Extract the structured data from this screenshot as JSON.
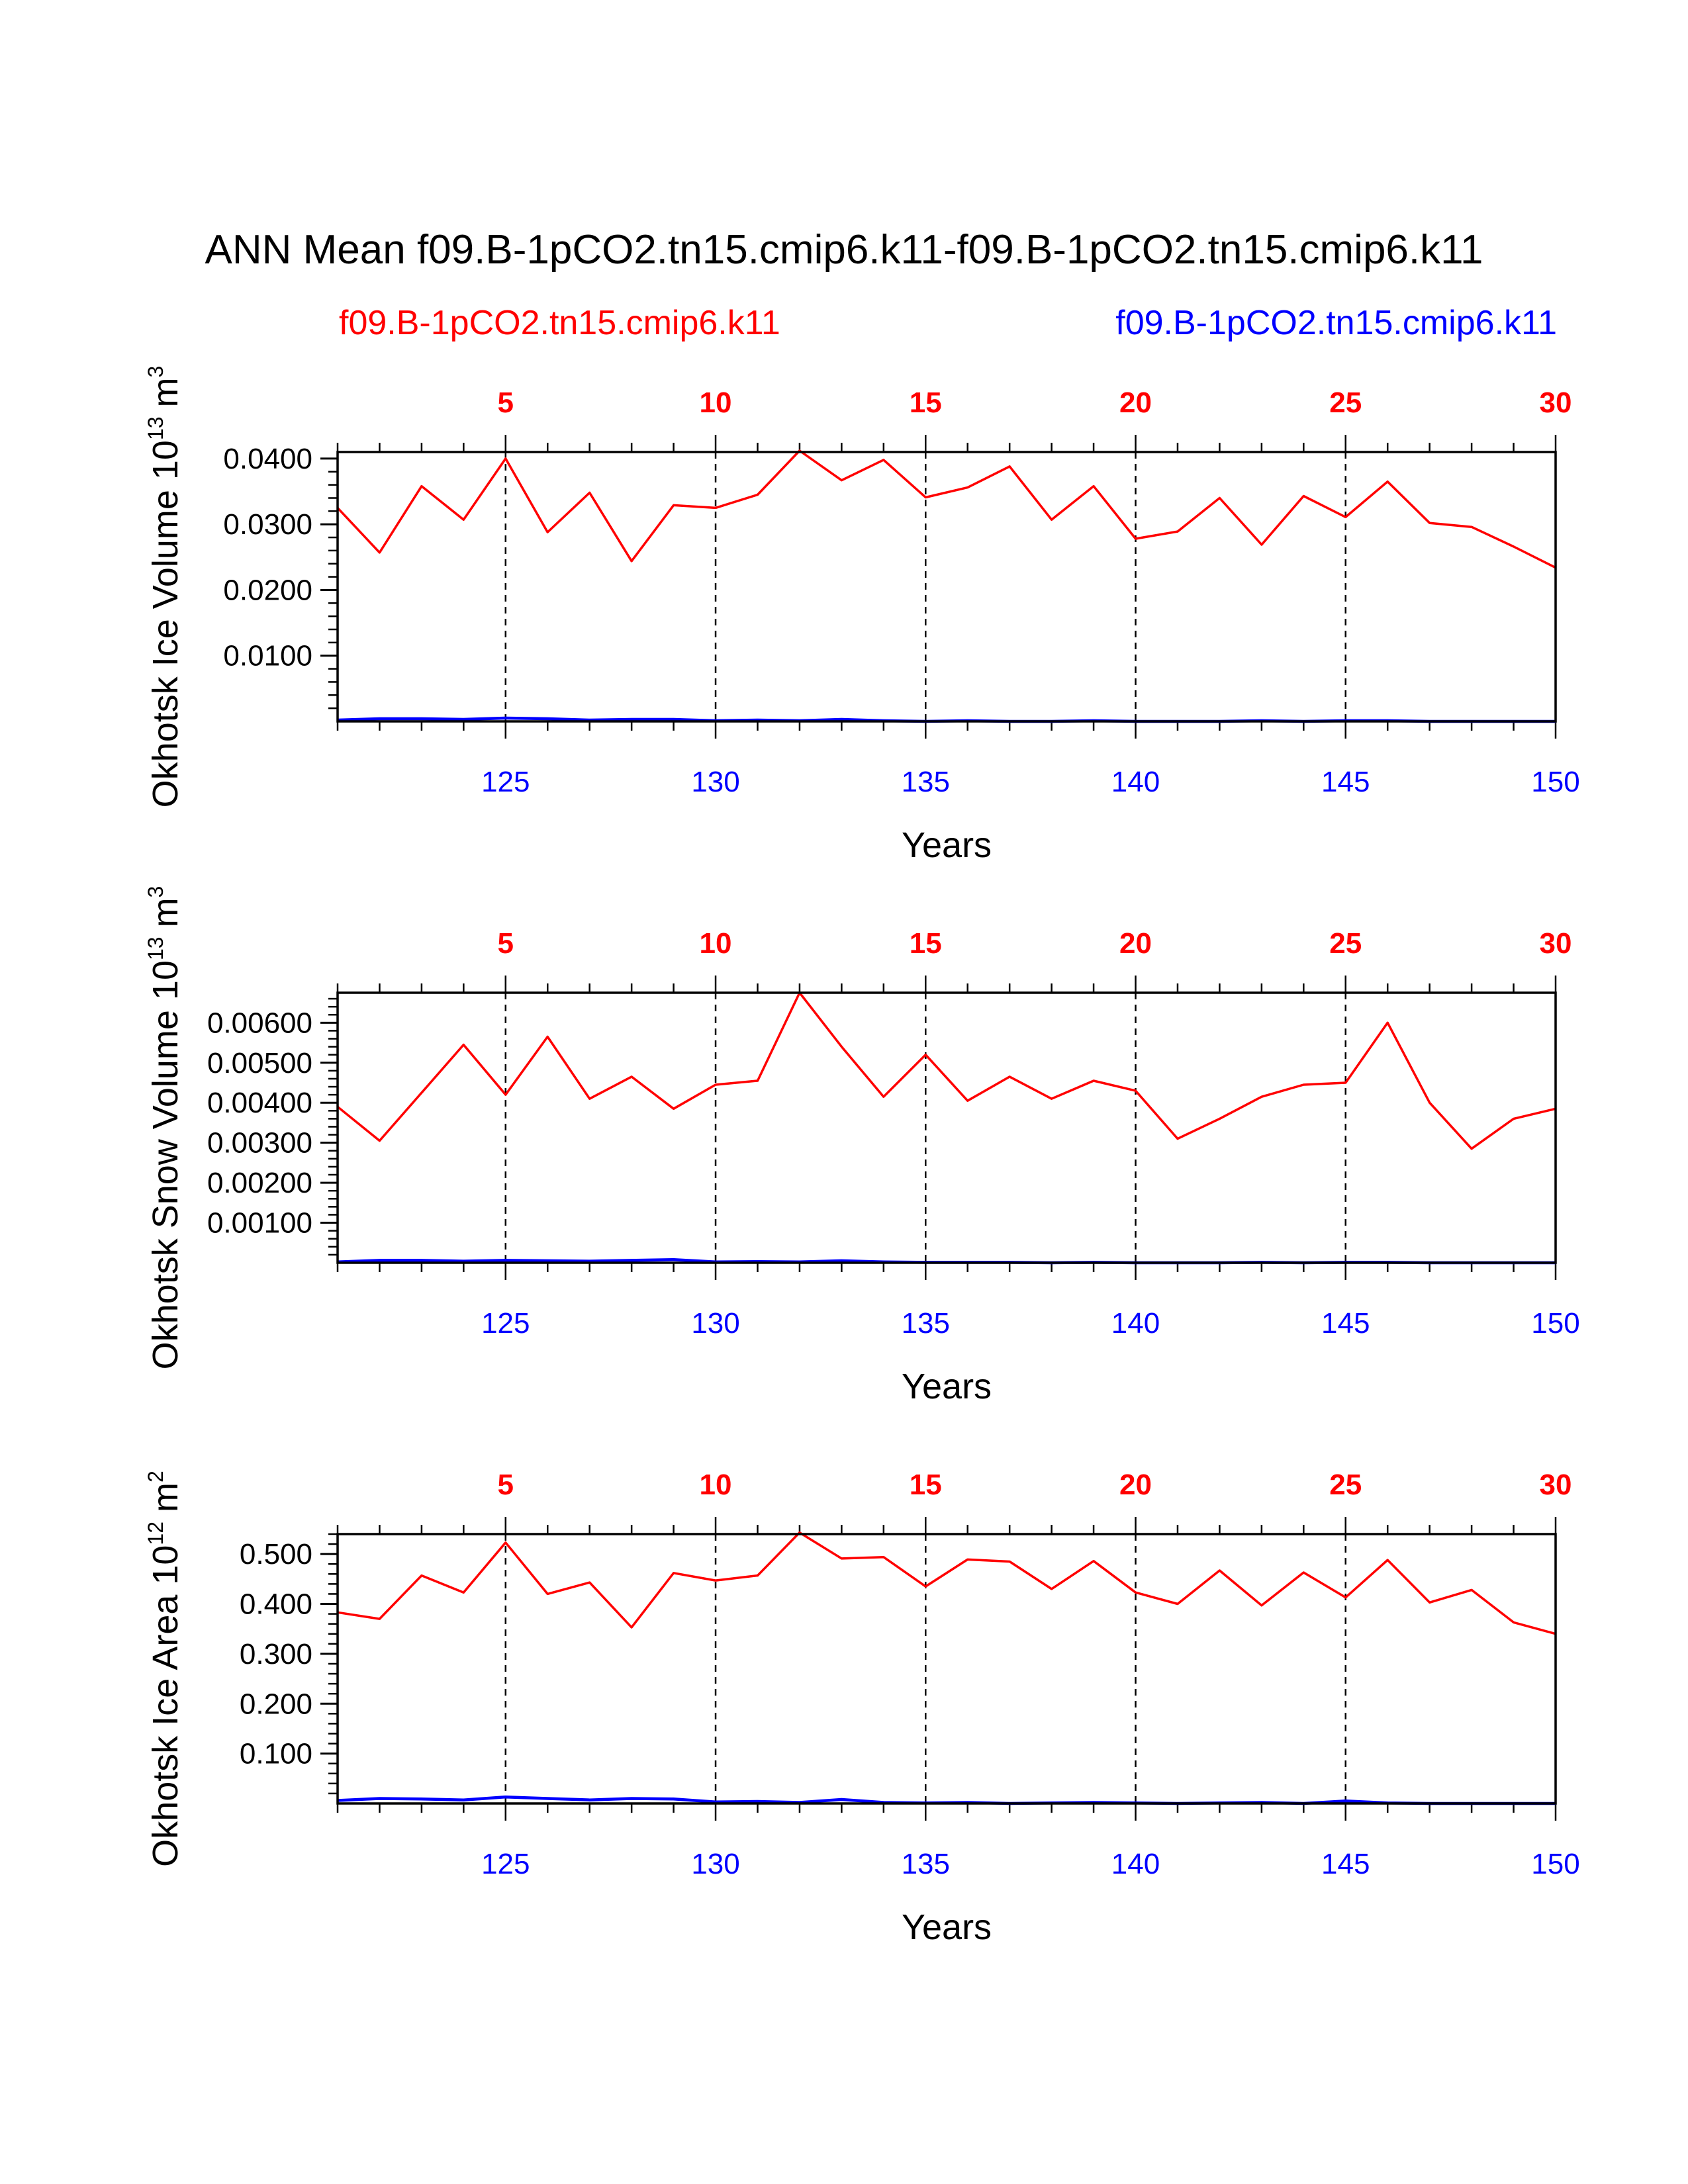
{
  "title": "ANN Mean f09.B-1pCO2.tn15.cmip6.k11-f09.B-1pCO2.tn15.cmip6.k11",
  "legend": [
    {
      "label": "f09.B-1pCO2.tn15.cmip6.k11",
      "color": "#ff0000"
    },
    {
      "label": "f09.B-1pCO2.tn15.cmip6.k11",
      "color": "#0000ff"
    }
  ],
  "colors": {
    "series_a": "#ff0000",
    "series_b": "#0000ff",
    "axis": "#000000"
  },
  "chart_data": [
    {
      "type": "line",
      "title": "ANN Mean f09.B-1pCO2.tn15.cmip6.k11-f09.B-1pCO2.tn15.cmip6.k11",
      "ylabel_main": "Okhotsk Ice Volume 10",
      "ylabel_exp": "13",
      "ylabel_unit": "m",
      "ylabel_unit_exp": "3",
      "xlabel": "Years",
      "xlim": [
        121,
        150
      ],
      "ylim": [
        0,
        0.041
      ],
      "yticks": [
        "0.0100",
        "0.0200",
        "0.0300",
        "0.0400"
      ],
      "ytick_values": [
        0.01,
        0.02,
        0.03,
        0.04
      ],
      "top_ticks": [
        "5",
        "10",
        "15",
        "20",
        "25",
        "30"
      ],
      "bottom_ticks": [
        "125",
        "130",
        "135",
        "140",
        "145",
        "150"
      ],
      "x": [
        121,
        122,
        123,
        124,
        125,
        126,
        127,
        128,
        129,
        130,
        131,
        132,
        133,
        134,
        135,
        136,
        137,
        138,
        139,
        140,
        141,
        142,
        143,
        144,
        145,
        146,
        147,
        148,
        149,
        150
      ],
      "series": [
        {
          "name": "f09.B-1pCO2.tn15.cmip6.k11",
          "color": "#ff0000",
          "values": [
            0.0325,
            0.0257,
            0.0358,
            0.0307,
            0.04,
            0.0288,
            0.0348,
            0.0244,
            0.0329,
            0.0325,
            0.0345,
            0.0412,
            0.0367,
            0.0398,
            0.0341,
            0.0356,
            0.0388,
            0.0307,
            0.0358,
            0.0278,
            0.0289,
            0.034,
            0.0269,
            0.0343,
            0.0311,
            0.0365,
            0.0302,
            0.0296,
            0.0266,
            0.0234
          ]
        },
        {
          "name": "f09.B-1pCO2.tn15.cmip6.k11",
          "color": "#0000ff",
          "values": [
            0.0002,
            0.0004,
            0.0004,
            0.0003,
            0.0005,
            0.0004,
            0.0002,
            0.0003,
            0.0003,
            0.0001,
            0.0002,
            0.0001,
            0.0003,
            0.0001,
            0.0,
            0.0001,
            0.0,
            0.0,
            0.0001,
            0.0,
            0.0,
            0.0,
            0.0001,
            0.0,
            0.0001,
            0.0001,
            0.0,
            0.0,
            0.0,
            0.0
          ]
        }
      ]
    },
    {
      "type": "line",
      "ylabel_main": "Okhotsk Snow Volume 10",
      "ylabel_exp": "13",
      "ylabel_unit": "m",
      "ylabel_unit_exp": "3",
      "xlabel": "Years",
      "xlim": [
        121,
        150
      ],
      "ylim": [
        0,
        0.00675
      ],
      "yticks": [
        "0.00100",
        "0.00200",
        "0.00300",
        "0.00400",
        "0.00500",
        "0.00600"
      ],
      "ytick_values": [
        0.001,
        0.002,
        0.003,
        0.004,
        0.005,
        0.006
      ],
      "top_ticks": [
        "5",
        "10",
        "15",
        "20",
        "25",
        "30"
      ],
      "bottom_ticks": [
        "125",
        "130",
        "135",
        "140",
        "145",
        "150"
      ],
      "x": [
        121,
        122,
        123,
        124,
        125,
        126,
        127,
        128,
        129,
        130,
        131,
        132,
        133,
        134,
        135,
        136,
        137,
        138,
        139,
        140,
        141,
        142,
        143,
        144,
        145,
        146,
        147,
        148,
        149,
        150
      ],
      "series": [
        {
          "name": "f09.B-1pCO2.tn15.cmip6.k11",
          "color": "#ff0000",
          "values": [
            0.0039,
            0.00305,
            0.00425,
            0.00545,
            0.0042,
            0.00565,
            0.0041,
            0.00465,
            0.00385,
            0.00445,
            0.00455,
            0.00675,
            0.0054,
            0.00415,
            0.0052,
            0.00405,
            0.00465,
            0.0041,
            0.00455,
            0.0043,
            0.0031,
            0.0036,
            0.00415,
            0.00445,
            0.0045,
            0.006,
            0.004,
            0.00285,
            0.0036,
            0.00385
          ]
        },
        {
          "name": "f09.B-1pCO2.tn15.cmip6.k11",
          "color": "#0000ff",
          "values": [
            2e-05,
            6e-05,
            6e-05,
            4e-05,
            6e-05,
            5e-05,
            4e-05,
            6e-05,
            8e-05,
            2e-05,
            3e-05,
            2e-05,
            5e-05,
            2e-05,
            1e-05,
            1e-05,
            1e-05,
            0.0,
            1e-05,
            0.0,
            0.0,
            0.0,
            1e-05,
            0.0,
            1e-05,
            1e-05,
            0.0,
            0.0,
            0.0,
            0.0
          ]
        }
      ]
    },
    {
      "type": "line",
      "ylabel_main": "Okhotsk Ice Area 10",
      "ylabel_exp": "12",
      "ylabel_unit": "m",
      "ylabel_unit_exp": "2",
      "xlabel": "Years",
      "xlim": [
        121,
        150
      ],
      "ylim": [
        0,
        0.54
      ],
      "yticks": [
        "0.100",
        "0.200",
        "0.300",
        "0.400",
        "0.500"
      ],
      "ytick_values": [
        0.1,
        0.2,
        0.3,
        0.4,
        0.5
      ],
      "top_ticks": [
        "5",
        "10",
        "15",
        "20",
        "25",
        "30"
      ],
      "bottom_ticks": [
        "125",
        "130",
        "135",
        "140",
        "145",
        "150"
      ],
      "x": [
        121,
        122,
        123,
        124,
        125,
        126,
        127,
        128,
        129,
        130,
        131,
        132,
        133,
        134,
        135,
        136,
        137,
        138,
        139,
        140,
        141,
        142,
        143,
        144,
        145,
        146,
        147,
        148,
        149,
        150
      ],
      "series": [
        {
          "name": "f09.B-1pCO2.tn15.cmip6.k11",
          "color": "#ff0000",
          "values": [
            0.383,
            0.37,
            0.457,
            0.423,
            0.523,
            0.42,
            0.443,
            0.353,
            0.462,
            0.447,
            0.457,
            0.543,
            0.491,
            0.494,
            0.435,
            0.489,
            0.485,
            0.43,
            0.486,
            0.423,
            0.4,
            0.467,
            0.397,
            0.463,
            0.413,
            0.488,
            0.403,
            0.428,
            0.363,
            0.34
          ]
        },
        {
          "name": "f09.B-1pCO2.tn15.cmip6.k11",
          "color": "#0000ff",
          "values": [
            0.006,
            0.01,
            0.009,
            0.007,
            0.013,
            0.01,
            0.007,
            0.01,
            0.009,
            0.003,
            0.004,
            0.002,
            0.008,
            0.002,
            0.001,
            0.002,
            0.0,
            0.001,
            0.002,
            0.001,
            0.0,
            0.001,
            0.002,
            0.0,
            0.005,
            0.001,
            0.0,
            0.0,
            0.0,
            0.0
          ]
        }
      ]
    }
  ]
}
